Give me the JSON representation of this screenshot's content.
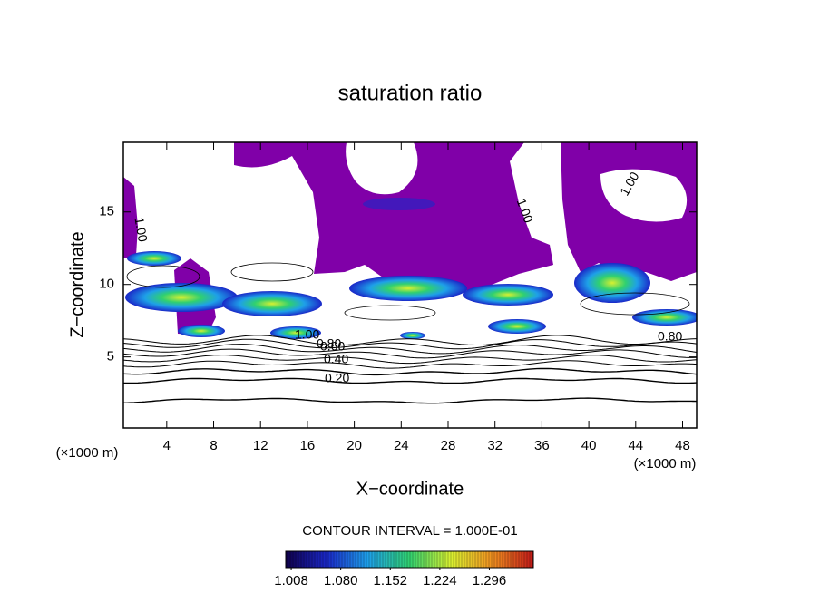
{
  "chart_data": {
    "type": "contour",
    "title": "saturation ratio",
    "x_label": "X−coordinate",
    "y_label": "Z−coordinate",
    "x_unit": "(×1000 m)",
    "xlim": [
      0.3,
      49.2
    ],
    "xticks": [
      4,
      8,
      12,
      16,
      20,
      24,
      28,
      32,
      36,
      40,
      44,
      48
    ],
    "ylim": [
      0.1,
      19.8
    ],
    "yticks": [
      5,
      10,
      15
    ],
    "fill_color": "#8000a8",
    "contour_labels": [
      {
        "value": 0.2,
        "label": "0.20"
      },
      {
        "value": 0.4,
        "label": "0.40"
      },
      {
        "value": 0.6,
        "label": "0.60"
      },
      {
        "value": 0.8,
        "label": "0.80"
      },
      {
        "value": 1.0,
        "label": "1.00"
      },
      {
        "value": 1.0,
        "label": "1.00"
      },
      {
        "value": 1.0,
        "label": "1.00"
      },
      {
        "value": 1.0,
        "label": "1.00"
      },
      {
        "value": 0.8,
        "label": "0.80"
      }
    ],
    "contour_interval": "CONTOUR INTERVAL = 1.000E-01",
    "colorbar": {
      "lim": [
        1.0,
        1.36
      ],
      "ticks": [
        {
          "value": 1.008,
          "label": "1.008"
        },
        {
          "value": 1.08,
          "label": "1.080"
        },
        {
          "value": 1.152,
          "label": "1.152"
        },
        {
          "value": 1.224,
          "label": "1.224"
        },
        {
          "value": 1.296,
          "label": "1.296"
        }
      ],
      "colors": [
        "#10004a",
        "#1a28c8",
        "#1ea0e8",
        "#30d070",
        "#d8f030",
        "#f09020",
        "#c01818"
      ]
    }
  }
}
